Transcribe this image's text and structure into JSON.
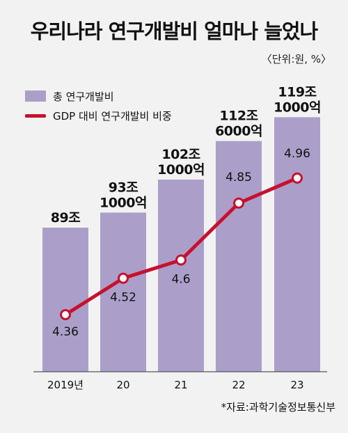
{
  "title": "우리나라 연구개발비 얼마나 늘었나",
  "unit_note": "〈단위:원, %〉",
  "legend": {
    "bars": "총 연구개발비",
    "line": "GDP 대비 연구개발비 비중"
  },
  "source": "*자료:과학기술정보통신부",
  "colors": {
    "bar": "#ab9fc9",
    "line": "#c8102e",
    "background": "#f2f2f2"
  },
  "chart_data": {
    "type": "bar",
    "categories": [
      "2019년",
      "20",
      "21",
      "22",
      "23"
    ],
    "series": [
      {
        "name": "총 연구개발비",
        "type": "bar",
        "values": [
          89,
          93.1,
          102.1,
          112.6,
          119.1
        ],
        "labels": [
          [
            "89조"
          ],
          [
            "93조",
            "1000억"
          ],
          [
            "102조",
            "1000억"
          ],
          [
            "112조",
            "6000억"
          ],
          [
            "119조",
            "1000억"
          ]
        ]
      },
      {
        "name": "GDP 대비 연구개발비 비중",
        "type": "line",
        "values": [
          4.36,
          4.52,
          4.6,
          4.85,
          4.96
        ],
        "labels": [
          "4.36",
          "4.52",
          "4.6",
          "4.85",
          "4.96"
        ]
      }
    ]
  }
}
